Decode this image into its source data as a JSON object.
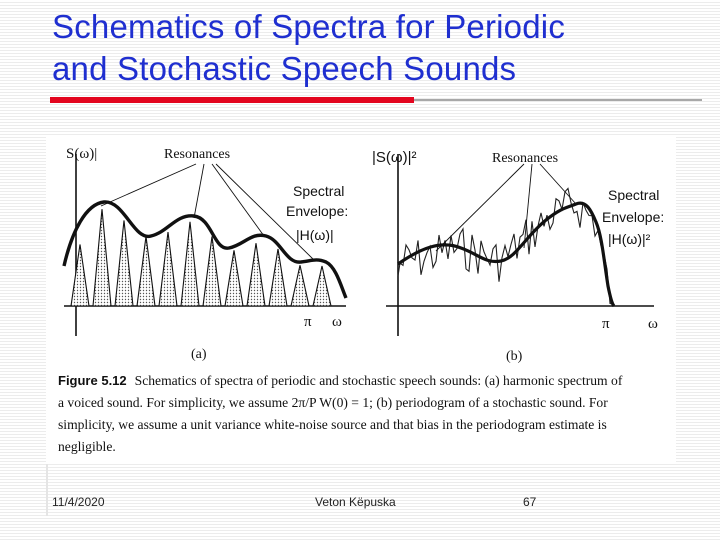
{
  "slide": {
    "title_line1": "Schematics of Spectra for Periodic",
    "title_line2": "and Stochastic Speech Sounds",
    "accent_color": "#e3051f",
    "title_color": "#1f2fd0"
  },
  "figure": {
    "panel_a": {
      "y_axis_label": "S(ω)|",
      "resonances_label": "Resonances",
      "envelope_line1": "Spectral",
      "envelope_line2": "Envelope:",
      "envelope_line3": "|H(ω)|",
      "pi_label": "π",
      "omega_label": "ω",
      "panel_label": "(a)"
    },
    "panel_b": {
      "y_axis_label": "|S(ω)|²",
      "resonances_label": "Resonances",
      "envelope_line1": "Spectral",
      "envelope_line2": "Envelope:",
      "envelope_line3": "|H(ω)|²",
      "pi_label": "π",
      "omega_label": "ω",
      "panel_label": "(b)"
    },
    "caption": {
      "figure_number": "Figure 5.12",
      "line1": "Schematics of spectra of periodic and stochastic speech sounds: (a) harmonic spectrum of",
      "line2": "a voiced sound. For simplicity, we assume 2π/P W(0) = 1; (b) periodogram of a stochastic sound. For",
      "line3": "simplicity, we assume a unit variance white-noise source and that bias in the periodogram estimate is",
      "line4": "negligible."
    }
  },
  "footer": {
    "date": "11/4/2020",
    "author": "Veton Këpuska",
    "page": "67"
  }
}
